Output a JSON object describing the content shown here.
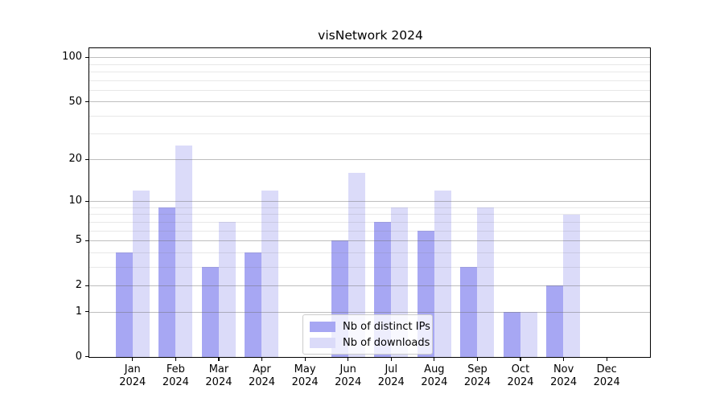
{
  "chart_data": {
    "type": "bar",
    "title": "visNetwork 2024",
    "categories": [
      "Jan 2024",
      "Feb 2024",
      "Mar 2024",
      "Apr 2024",
      "May 2024",
      "Jun 2024",
      "Jul 2024",
      "Aug 2024",
      "Sep 2024",
      "Oct 2024",
      "Nov 2024",
      "Dec 2024"
    ],
    "series": [
      {
        "name": "Nb of distinct IPs",
        "color": "#a7a7f3",
        "values": [
          4,
          9,
          3,
          4,
          0,
          5,
          7,
          6,
          3,
          1,
          2,
          0
        ]
      },
      {
        "name": "Nb of downloads",
        "color": "#dbdbf9",
        "values": [
          12,
          25,
          7,
          12,
          0,
          16,
          9,
          12,
          9,
          1,
          8,
          0
        ]
      }
    ],
    "xlabel": "",
    "ylabel": "",
    "yscale": "log1p",
    "y_ticks": [
      0,
      1,
      2,
      5,
      10,
      20,
      50,
      100
    ],
    "y_minor_gridlines": [
      3,
      4,
      6,
      7,
      8,
      9,
      30,
      40,
      60,
      70,
      80,
      90
    ],
    "ylim": [
      0,
      115
    ],
    "grid": true,
    "legend_position": "lower center"
  }
}
